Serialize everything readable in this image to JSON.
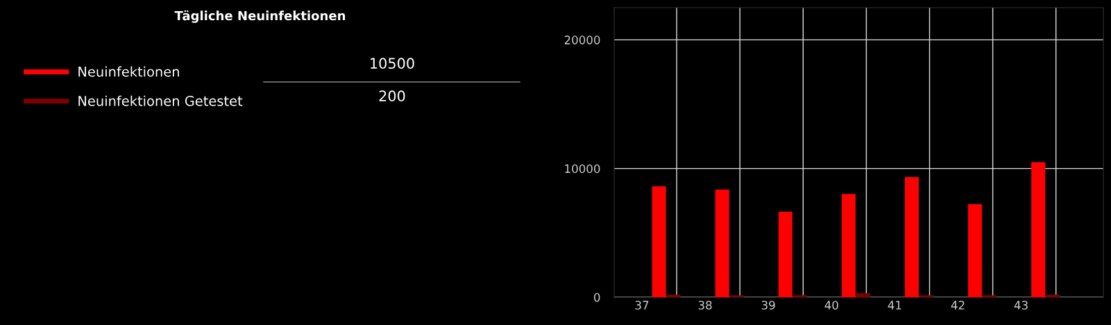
{
  "chart_data": {
    "type": "bar",
    "title": "Tägliche Neuinfektionen",
    "categories": [
      "37",
      "38",
      "39",
      "40",
      "41",
      "42",
      "43"
    ],
    "series": [
      {
        "name": "Neuinfektionen",
        "color": "#ff0000",
        "values": [
          8620,
          8360,
          6630,
          8030,
          9330,
          7230,
          10500
        ]
      },
      {
        "name": "Neuinfektionen Getestet",
        "color": "#800000",
        "values": [
          190,
          150,
          150,
          310,
          150,
          150,
          200
        ]
      }
    ],
    "annotations": [
      "10500",
      "200"
    ],
    "ylim": [
      0,
      22500
    ],
    "yticks": [
      0,
      10000,
      20000
    ],
    "grid": true,
    "legend": "left"
  }
}
